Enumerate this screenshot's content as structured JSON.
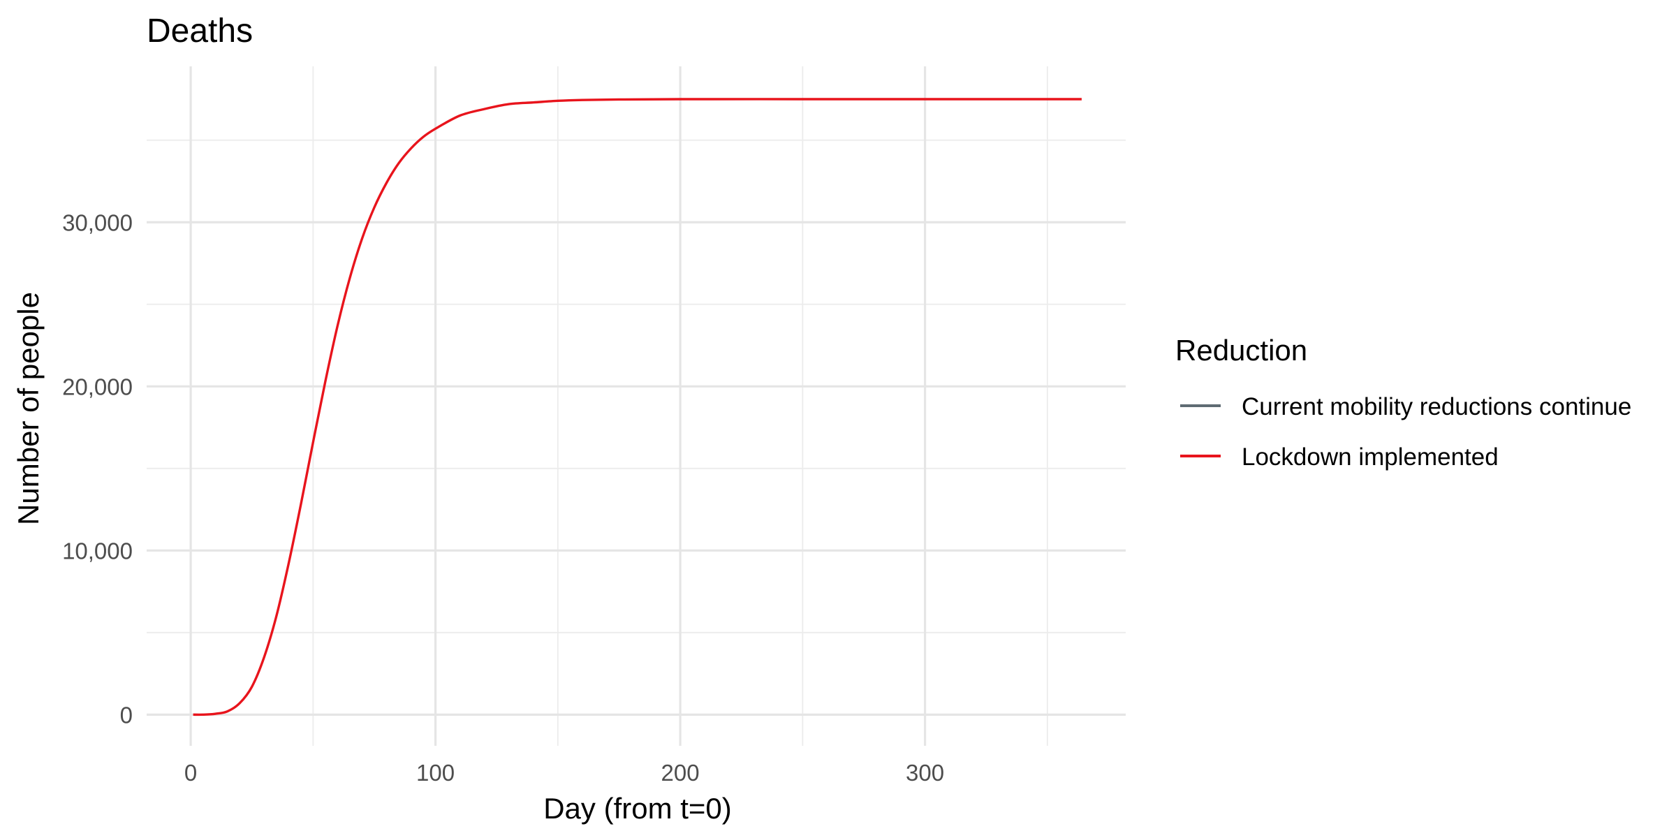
{
  "chart_data": {
    "type": "line",
    "title": "Deaths",
    "xlabel": "Day (from t=0)",
    "ylabel": "Number of people",
    "xlim": [
      -18,
      382
    ],
    "ylim": [
      -1900,
      39500
    ],
    "x_ticks": [
      0,
      100,
      200,
      300
    ],
    "x_tick_labels": [
      "0",
      "100",
      "200",
      "300"
    ],
    "y_ticks": [
      0,
      10000,
      20000,
      30000
    ],
    "y_tick_labels": [
      "0",
      "10,000",
      "20,000",
      "30,000"
    ],
    "x_minor": [
      50,
      150,
      250,
      350
    ],
    "y_minor": [
      5000,
      15000,
      25000,
      35000
    ],
    "grid": true,
    "legend": {
      "title": "Reduction",
      "position": "right",
      "entries": [
        {
          "label": "Current mobility reductions continue",
          "color": "#5f6b73"
        },
        {
          "label": "Lockdown implemented",
          "color": "#e8141c"
        }
      ]
    },
    "series": [
      {
        "name": "Lockdown implemented",
        "color": "#e8141c",
        "x": [
          1,
          5,
          10,
          15,
          20,
          25,
          30,
          35,
          40,
          45,
          50,
          55,
          60,
          65,
          70,
          75,
          80,
          85,
          90,
          95,
          100,
          110,
          120,
          130,
          140,
          150,
          160,
          175,
          200,
          250,
          300,
          364
        ],
        "y": [
          0,
          0,
          50,
          200,
          700,
          1700,
          3500,
          6000,
          9200,
          12800,
          16600,
          20300,
          23700,
          26600,
          29000,
          30900,
          32400,
          33600,
          34500,
          35200,
          35700,
          36500,
          36900,
          37200,
          37300,
          37400,
          37450,
          37480,
          37500,
          37500,
          37500,
          37500
        ]
      }
    ]
  }
}
